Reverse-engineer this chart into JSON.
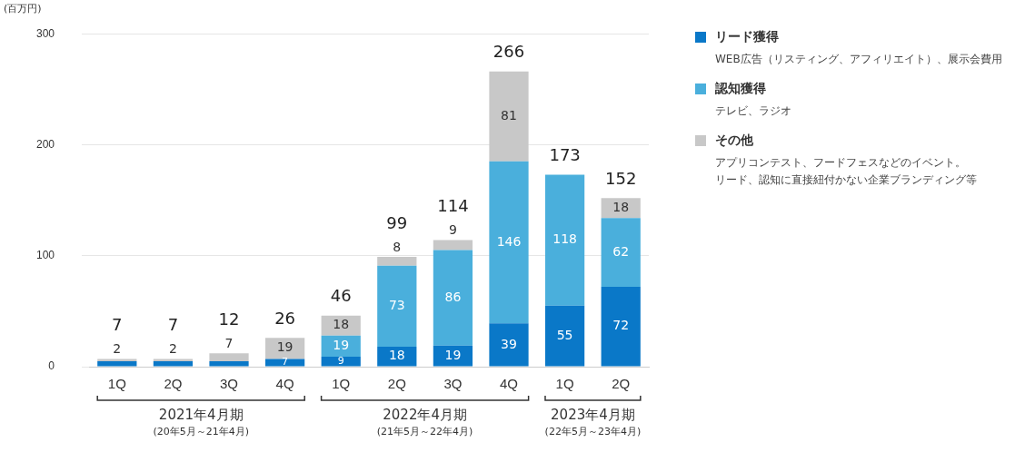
{
  "chart_data": {
    "type": "bar",
    "stacked": true,
    "ylabel": "(百万円)",
    "categories": [
      "1Q",
      "2Q",
      "3Q",
      "4Q",
      "1Q",
      "2Q",
      "3Q",
      "4Q",
      "1Q",
      "2Q"
    ],
    "series": [
      {
        "name": "リード獲得",
        "color": "#0a78c8",
        "values": [
          5,
          5,
          5,
          7,
          9,
          18,
          19,
          39,
          55,
          72
        ],
        "value_labels": [
          null,
          null,
          null,
          "7",
          "9",
          "18",
          "19",
          "39",
          "55",
          "72"
        ]
      },
      {
        "name": "認知獲得",
        "color": "#4aafdc",
        "values": [
          0,
          0,
          0,
          0,
          19,
          73,
          86,
          146,
          118,
          62
        ],
        "value_labels": [
          null,
          null,
          null,
          null,
          "19",
          "73",
          "86",
          "146",
          "118",
          "62"
        ]
      },
      {
        "name": "その他",
        "color": "#c8c8c8",
        "values": [
          2,
          2,
          7,
          19,
          18,
          8,
          9,
          81,
          0,
          18
        ],
        "value_labels": [
          "2",
          "2",
          "7",
          "19",
          "18",
          "8",
          "9",
          "81",
          null,
          "18"
        ]
      }
    ],
    "totals": [
      "7",
      "7",
      "12",
      "26",
      "46",
      "99",
      "114",
      "266",
      "173",
      "152"
    ],
    "ylim": [
      0,
      300
    ],
    "yticks": [
      0,
      100,
      200,
      300
    ],
    "grid": "y",
    "legend": "top right",
    "annotations": [
      "2021年4月期",
      "(20年5月～21年4月)",
      "2022年4月期",
      "(21年5月～22年4月)",
      "2023年4月期",
      "(22年5月～23年4月)",
      "WEB広告（リスティング、アフィリエイト）、展示会費用",
      "テレビ、ラジオ",
      "アプリコンテスト、フードフェスなどのイベント。",
      "リード、認知に直接紐付かない企業ブランディング等"
    ]
  }
}
